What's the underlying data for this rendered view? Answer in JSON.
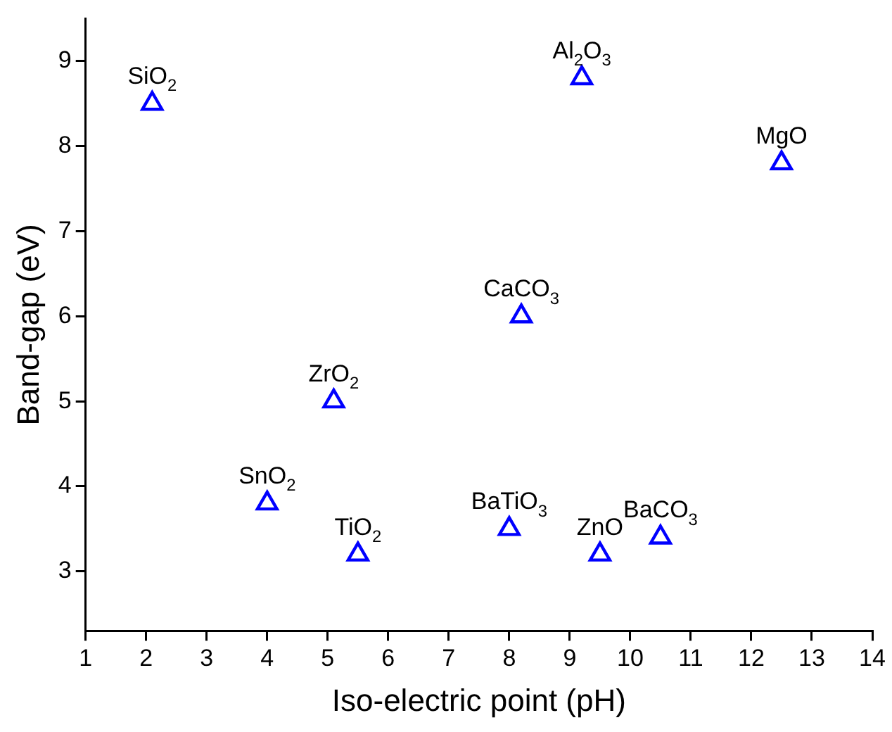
{
  "chart_data": {
    "type": "scatter",
    "xlabel": "Iso-electric point (pH)",
    "ylabel": "Band-gap (eV)",
    "series": [
      {
        "color": "#0000ff",
        "x": [
          2.1,
          9.2,
          12.5,
          8.2,
          5.1,
          4.0,
          5.5,
          8.0,
          9.5,
          10.5
        ],
        "values": [
          8.5,
          8.8,
          7.8,
          6.0,
          5.0,
          3.8,
          3.2,
          3.5,
          3.2,
          3.4
        ]
      }
    ],
    "marker": "triangle",
    "xlim": [
      1,
      14
    ],
    "xticks": [
      1,
      2,
      3,
      4,
      5,
      6,
      7,
      8,
      9,
      10,
      11,
      12,
      13,
      14
    ],
    "ylim": [
      2.3,
      9.5
    ],
    "yticks": [
      3,
      4,
      5,
      6,
      7,
      8,
      9
    ],
    "grid": false,
    "legend": false,
    "annotations": [
      {
        "text": "SiO$_{2}$",
        "x": 2.1,
        "y": 8.5
      },
      {
        "text": "Al$_{2}$O$_{3}$",
        "x": 9.2,
        "y": 8.8
      },
      {
        "text": "MgO",
        "x": 12.5,
        "y": 7.8
      },
      {
        "text": "CaCO$_{3}$",
        "x": 8.2,
        "y": 6.0
      },
      {
        "text": "ZrO$_{2}$",
        "x": 5.1,
        "y": 5.0
      },
      {
        "text": "SnO$_{2}$",
        "x": 4.0,
        "y": 3.8
      },
      {
        "text": "TiO$_{2}$",
        "x": 5.5,
        "y": 3.2
      },
      {
        "text": "BaTiO$_{3}$",
        "x": 8.0,
        "y": 3.5
      },
      {
        "text": "ZnO",
        "x": 9.5,
        "y": 3.2
      },
      {
        "text": "BaCO$_{3}$",
        "x": 10.5,
        "y": 3.4
      }
    ]
  }
}
